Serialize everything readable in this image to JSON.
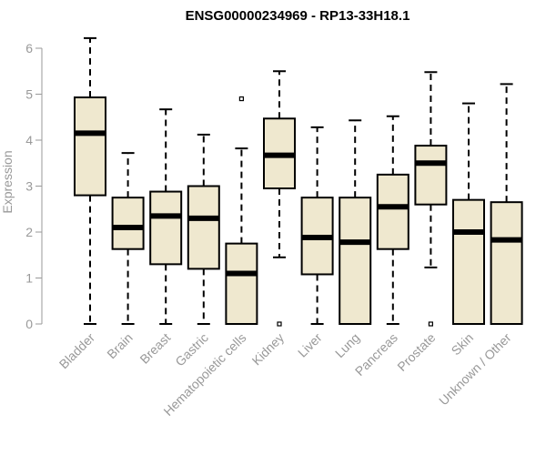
{
  "chart_data": {
    "type": "boxplot",
    "title": "ENSG00000234969 - RP13-33H18.1",
    "xlabel": "",
    "ylabel": "Expression",
    "ylim": [
      0,
      6.3
    ],
    "yticks": [
      0,
      1,
      2,
      3,
      4,
      5,
      6
    ],
    "ytick_labels": [
      "0",
      "1",
      "2",
      "3",
      "4",
      "5",
      "6"
    ],
    "grid": false,
    "box_fill": "#efe8cf",
    "box_stroke": "#000000",
    "categories": [
      "Bladder",
      "Brain",
      "Breast",
      "Gastric",
      "Hematopoietic cells",
      "Kidney",
      "Liver",
      "Lung",
      "Pancreas",
      "Prostate",
      "Skin",
      "Unknown / Other"
    ],
    "boxes": [
      {
        "min": 0,
        "q1": 2.8,
        "median": 4.15,
        "q3": 4.93,
        "max": 6.22,
        "outliers": []
      },
      {
        "min": 0,
        "q1": 1.63,
        "median": 2.1,
        "q3": 2.75,
        "max": 3.72,
        "outliers": []
      },
      {
        "min": 0,
        "q1": 1.3,
        "median": 2.35,
        "q3": 2.88,
        "max": 4.67,
        "outliers": []
      },
      {
        "min": 0,
        "q1": 1.2,
        "median": 2.3,
        "q3": 3.0,
        "max": 4.12,
        "outliers": []
      },
      {
        "min": 0,
        "q1": 0,
        "median": 1.1,
        "q3": 1.75,
        "max": 3.82,
        "outliers": [
          4.9
        ]
      },
      {
        "min": 1.45,
        "q1": 2.95,
        "median": 3.67,
        "q3": 4.47,
        "max": 5.5,
        "outliers": [
          0
        ]
      },
      {
        "min": 0,
        "q1": 1.08,
        "median": 1.88,
        "q3": 2.75,
        "max": 4.28,
        "outliers": []
      },
      {
        "min": 0,
        "q1": 0,
        "median": 1.78,
        "q3": 2.75,
        "max": 4.43,
        "outliers": []
      },
      {
        "min": 0,
        "q1": 1.63,
        "median": 2.55,
        "q3": 3.25,
        "max": 4.52,
        "outliers": []
      },
      {
        "min": 1.23,
        "q1": 2.6,
        "median": 3.5,
        "q3": 3.88,
        "max": 5.48,
        "outliers": [
          0
        ]
      },
      {
        "min": 0,
        "q1": 0,
        "median": 2.0,
        "q3": 2.7,
        "max": 4.8,
        "outliers": []
      },
      {
        "min": 0,
        "q1": 0,
        "median": 1.83,
        "q3": 2.65,
        "max": 5.22,
        "outliers": []
      }
    ]
  }
}
